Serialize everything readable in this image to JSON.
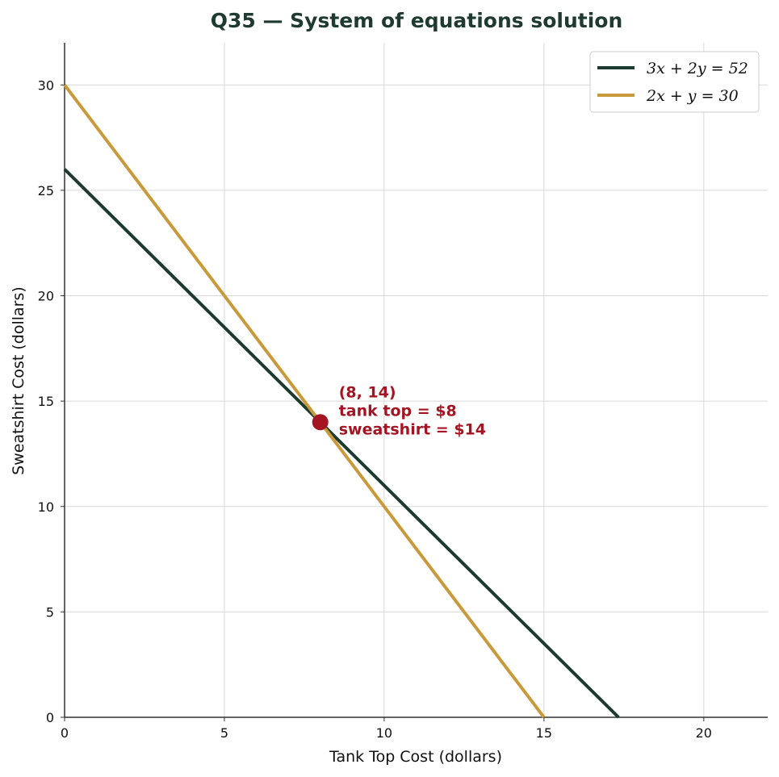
{
  "chart_data": {
    "type": "line",
    "title": "Q35 — System of equations solution",
    "xlabel": "Tank Top Cost (dollars)",
    "ylabel": "Sweatshirt Cost (dollars)",
    "xlim": [
      0,
      22
    ],
    "ylim": [
      0,
      32
    ],
    "xticks": [
      0,
      5,
      10,
      15,
      20
    ],
    "yticks": [
      0,
      5,
      10,
      15,
      20,
      25,
      30
    ],
    "grid": true,
    "legend_position": "top-right",
    "series": [
      {
        "name": "3x + 2y = 52",
        "color": "#1d3a2e",
        "x": [
          0,
          17.333
        ],
        "y": [
          26,
          0
        ]
      },
      {
        "name": "2x + y = 30",
        "color": "#c99a3c",
        "x": [
          0,
          15
        ],
        "y": [
          30,
          0
        ]
      }
    ],
    "solution_point": {
      "x": 8,
      "y": 14,
      "color": "#a51423"
    },
    "annotation_lines": [
      "(8, 14)",
      "tank top = $8",
      "sweatshirt = $14"
    ]
  }
}
